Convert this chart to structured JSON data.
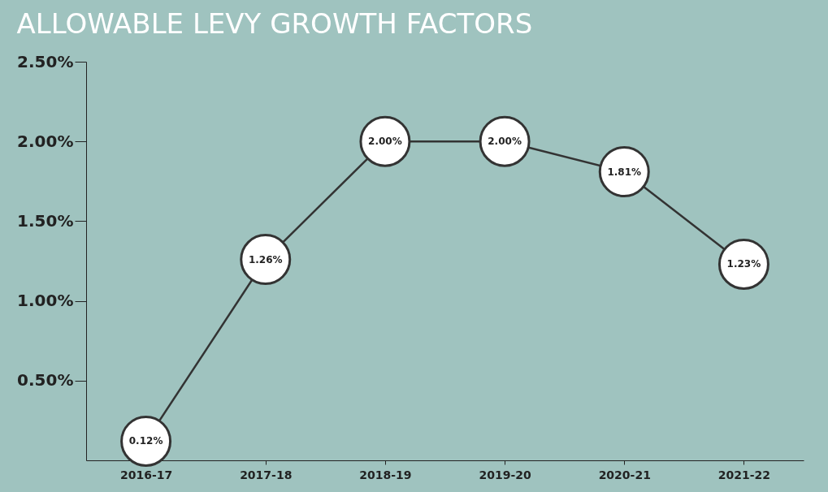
{
  "chart_data": {
    "type": "line",
    "title": "ALLOWABLE LEVY GROWTH FACTORS",
    "categories": [
      "2016-17",
      "2017-18",
      "2018-19",
      "2019-20",
      "2020-21",
      "2021-22"
    ],
    "series": [
      {
        "color": "#333333",
        "values": [
          0.12,
          1.26,
          2.0,
          2.0,
          1.81,
          1.23
        ]
      },
      {
        "type": "scatter",
        "marker": "circle",
        "color": "#ffffff",
        "values": [
          0.12,
          1.26,
          2.0,
          2.0,
          1.81,
          1.23
        ]
      }
    ],
    "value_labels": [
      "0.12%",
      "1.26%",
      "2.00%",
      "2.00%",
      "1.81%",
      "1.23%"
    ],
    "ylim": [
      0,
      2.5
    ],
    "yticks": [
      {
        "value": 0.5,
        "label": "0.50%"
      },
      {
        "value": 1.0,
        "label": "1.00%"
      },
      {
        "value": 1.5,
        "label": "1.50%"
      },
      {
        "value": 2.0,
        "label": "2.00%"
      },
      {
        "value": 2.5,
        "label": "2.50%"
      }
    ],
    "line_style": "solid",
    "grid": false
  }
}
